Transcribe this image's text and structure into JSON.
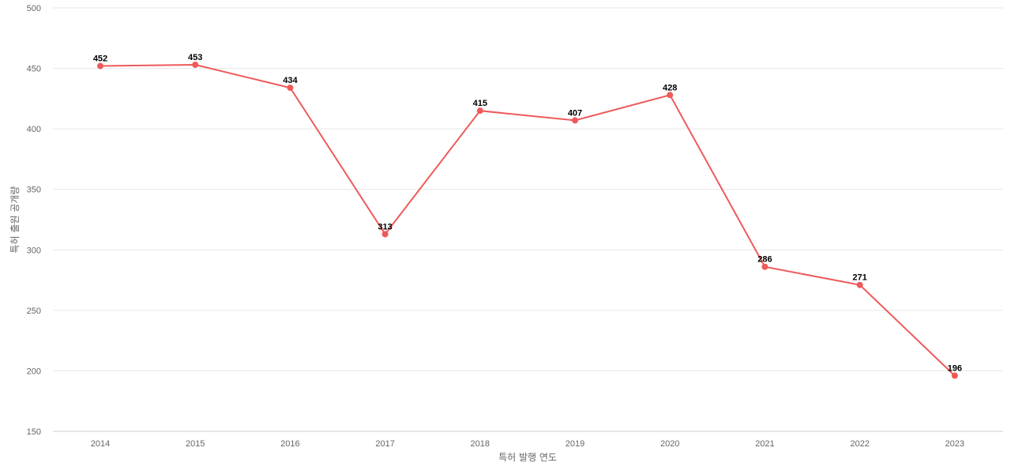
{
  "chart_data": {
    "type": "line",
    "xlabel": "특허 발행 연도",
    "ylabel": "특허 출원 공개량",
    "categories": [
      "2014",
      "2015",
      "2016",
      "2017",
      "2018",
      "2019",
      "2020",
      "2021",
      "2022",
      "2023"
    ],
    "series": [
      {
        "values": [
          452,
          453,
          434,
          313,
          415,
          407,
          428,
          286,
          271,
          196
        ]
      }
    ],
    "ylim": [
      150,
      500
    ],
    "yticks": [
      150,
      200,
      250,
      300,
      350,
      400,
      450,
      500
    ],
    "grid": true,
    "color": "#ee5a5a"
  }
}
